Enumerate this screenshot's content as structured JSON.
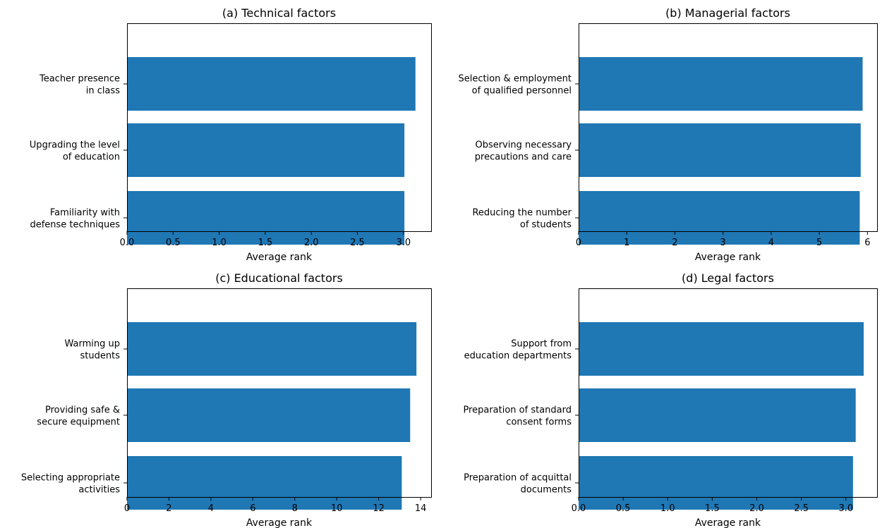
{
  "colors": {
    "bar": "#1f77b4",
    "axis": "#000000",
    "background": "#ffffff"
  },
  "chart_data": [
    {
      "type": "bar",
      "orientation": "horizontal",
      "title": "(a) Technical factors",
      "xlabel": "Average rank",
      "ylabel": "",
      "categories": [
        "Teacher presence\nin class",
        "Upgrading the level\nof education",
        "Familiarity with\ndefense techniques"
      ],
      "values": [
        3.13,
        3.01,
        3.01
      ],
      "xlim": [
        0,
        3.3
      ],
      "xticks": [
        0.0,
        0.5,
        1.0,
        1.5,
        2.0,
        2.5,
        3.0
      ],
      "xtick_labels": [
        "0.0",
        "0.5",
        "1.0",
        "1.5",
        "2.0",
        "2.5",
        "3.0"
      ],
      "grid": false
    },
    {
      "type": "bar",
      "orientation": "horizontal",
      "title": "(b) Managerial factors",
      "xlabel": "Average rank",
      "ylabel": "",
      "categories": [
        "Selection & employment\nof qualified personnel",
        "Observing necessary\nprecautions and care",
        "Reducing the number\nof students"
      ],
      "values": [
        5.9,
        5.86,
        5.84
      ],
      "xlim": [
        0,
        6.2
      ],
      "xticks": [
        0,
        1,
        2,
        3,
        4,
        5,
        6
      ],
      "xtick_labels": [
        "0",
        "1",
        "2",
        "3",
        "4",
        "5",
        "6"
      ],
      "grid": false
    },
    {
      "type": "bar",
      "orientation": "horizontal",
      "title": "(c) Educational factors",
      "xlabel": "Average rank",
      "ylabel": "",
      "categories": [
        "Warming up\nstudents",
        "Providing safe &\nsecure equipment",
        "Selecting appropriate\nactivities"
      ],
      "values": [
        13.8,
        13.5,
        13.1
      ],
      "xlim": [
        0,
        14.5
      ],
      "xticks": [
        0,
        2,
        4,
        6,
        8,
        10,
        12,
        14
      ],
      "xtick_labels": [
        "0",
        "2",
        "4",
        "6",
        "8",
        "10",
        "12",
        "14"
      ],
      "grid": false
    },
    {
      "type": "bar",
      "orientation": "horizontal",
      "title": "(d) Legal factors",
      "xlabel": "Average rank",
      "ylabel": "",
      "categories": [
        "Support from\neducation departments",
        "Preparation of standard\nconsent forms",
        "Preparation of acquittal\ndocuments"
      ],
      "values": [
        3.2,
        3.11,
        3.08
      ],
      "xlim": [
        0,
        3.35
      ],
      "xticks": [
        0.0,
        0.5,
        1.0,
        1.5,
        2.0,
        2.5,
        3.0
      ],
      "xtick_labels": [
        "0.0",
        "0.5",
        "1.0",
        "1.5",
        "2.0",
        "2.5",
        "3.0"
      ],
      "grid": false
    }
  ]
}
